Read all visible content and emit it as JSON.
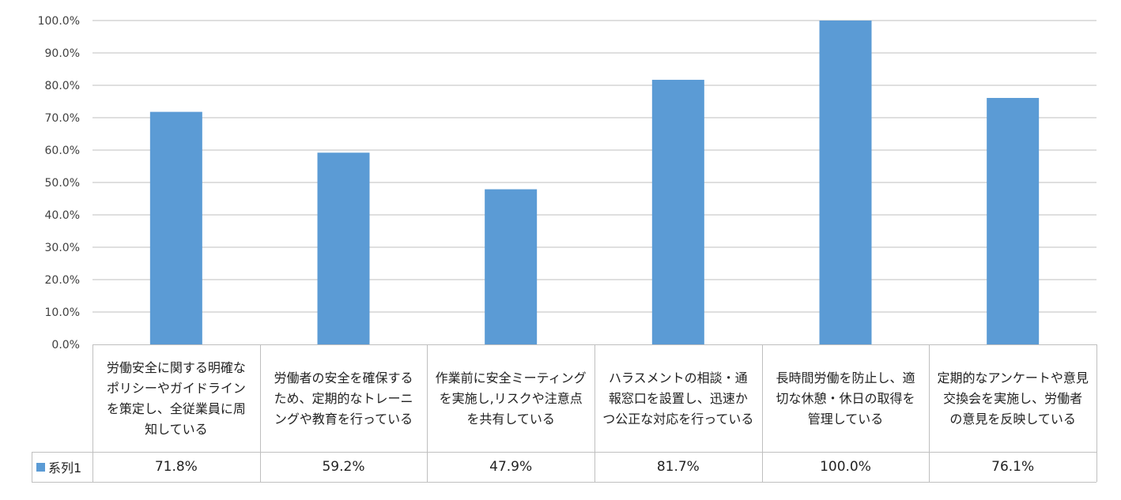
{
  "chart_data": {
    "type": "bar",
    "categories": [
      "労働安全に関する明確なポリシーやガイドラインを策定し、全従業員に周知している",
      "労働者の安全を確保するため、定期的なトレーニングや教育を行っている",
      "作業前に安全ミーティングを実施し,リスクや注意点を共有している",
      "ハラスメントの相談・通報窓口を設置し、迅速かつ公正な対応を行っている",
      "長時間労働を防止し、適切な休憩・休日の取得を管理している",
      "定期的なアンケートや意見交換会を実施し、労働者の意見を反映している"
    ],
    "series": [
      {
        "name": "系列1",
        "values": [
          71.8,
          59.2,
          47.9,
          81.7,
          100.0,
          76.1
        ],
        "labels": [
          "71.8%",
          "59.2%",
          "47.9%",
          "81.7%",
          "100.0%",
          "76.1%"
        ]
      }
    ],
    "yticks": [
      "0.0%",
      "10.0%",
      "20.0%",
      "30.0%",
      "40.0%",
      "50.0%",
      "60.0%",
      "70.0%",
      "80.0%",
      "90.0%",
      "100.0%"
    ],
    "ylim": [
      0,
      100
    ],
    "grid": true,
    "legend": "data-table",
    "bar_color": "#5B9BD5",
    "grid_color": "#BFBFBF",
    "table_border_color": "#BFBFBF"
  }
}
